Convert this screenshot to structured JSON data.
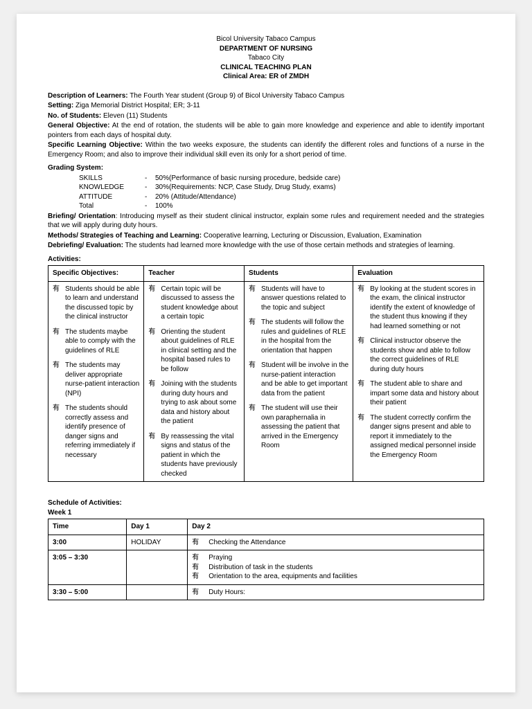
{
  "header": {
    "university": "Bicol University Tabaco Campus",
    "department": "DEPARTMENT OF NURSING",
    "city": "Tabaco City",
    "plan_title": "CLINICAL TEACHING PLAN",
    "area_label": "Clinical Area:",
    "area_value": "ER of ZMDH"
  },
  "fields": {
    "description_label": "Description of Learners:",
    "description_value": "The Fourth Year student (Group 9) of Bicol University Tabaco Campus",
    "setting_label": "Setting:",
    "setting_value": "Ziga Memorial District Hospital; ER; 3-11",
    "num_students_label": "No. of Students:",
    "num_students_value": "Eleven (11) Students",
    "general_obj_label": "General Objective:",
    "general_obj_value": "At the end of rotation, the students will be able to gain more knowledge and experience and able to identify important pointers from each days of hospital duty.",
    "specific_obj_label": "Specific Learning Objective:",
    "specific_obj_value": "Within the two weeks exposure, the students can identify the different roles and functions of a nurse in the Emergency Room; and also to improve their individual skill even its only for a short period of time.",
    "grading_label": "Grading System:",
    "briefing_label": "Briefing/ Orientation",
    "briefing_value": ": Introducing myself as their student clinical instructor, explain some rules and requirement needed and the strategies that we will apply during duty hours.",
    "methods_label": "Methods/ Strategies of Teaching and Learning:",
    "methods_value": "Cooperative learning, Lecturing or Discussion, Evaluation, Examination",
    "debrief_label": "Debriefing/ Evaluation:",
    "debrief_value": "The students had learned more knowledge with the use of those certain methods and strategies of learning.",
    "activities_label": "Activities:",
    "schedule_label": "Schedule of Activities:",
    "week_label": "Week 1"
  },
  "grading": [
    {
      "name": "SKILLS",
      "pct": "50%",
      "desc": "(Performance of basic nursing procedure, bedside care)"
    },
    {
      "name": "KNOWLEDGE",
      "pct": "30%",
      "desc": "(Requirements: NCP, Case Study, Drug Study, exams)"
    },
    {
      "name": "ATTITUDE",
      "pct": "20%",
      "desc": " (Attitude/Attendance)"
    },
    {
      "name": "Total",
      "pct": "100%",
      "desc": ""
    }
  ],
  "bullet": "有",
  "activities_table": {
    "headers": [
      "Specific Objectives:",
      "Teacher",
      "Students",
      "Evaluation"
    ],
    "rows": [
      {
        "obj": "Students should be able to learn    and understand the discussed topic by the clinical instructor",
        "teacher": "Certain topic will be discussed    to assess the student knowledge about a certain topic",
        "students": "Students will have to answer    questions related to the topic    and subject",
        "eval": "By looking at the student scores    in the exam, the clinical    instructor identify the extent of    knowledge of the student thus    knowing if they had learned    something or not"
      },
      {
        "obj": "The students maybe able to    comply with the guidelines of    RLE",
        "teacher": "Orienting the student about guidelines of RLE in clinical    setting and the hospital based rules to be follow",
        "students": "The students will follow the    rules and guidelines of RLE in    the hospital    from the orientation that happen",
        "eval": "Clinical instructor observe the    students show and able to follow the correct guidelines of RLE during duty hours"
      },
      {
        "obj": "The students may deliver    appropriate nurse-patient interaction (NPI)",
        "teacher": "Joining with the students    during duty hours and trying    to ask about some data and    history about the patient",
        "students": "Student will be involve in the    nurse-patient interaction and be    able to get important data from    the patient",
        "eval": "The student able to share and    impart some data and history    about their patient"
      },
      {
        "obj": "The students should correctly    assess and identify presence of danger signs and referring immediately if necessary",
        "teacher": "By reassessing the vital signs    and status of the patient in which the students have    previously checked",
        "students": "The student will use their own    paraphernalia in assessing the    patient that arrived in the Emergency Room",
        "eval": "The student correctly confirm    the danger signs present    and able to report it immediately to    the assigned    medical personnel inside    the Emergency Room"
      }
    ]
  },
  "schedule_table": {
    "headers": [
      "Time",
      "Day 1",
      "Day 2"
    ],
    "rows": [
      {
        "time": "3:00",
        "day1": "HOLIDAY",
        "day2_items": [
          "Checking the Attendance"
        ]
      },
      {
        "time": "3:05 – 3:30",
        "day1": "",
        "day2_items": [
          "Praying",
          "Distribution of task in the students",
          "Orientation to the area, equipments and facilities"
        ]
      },
      {
        "time": "3:30 – 5:00",
        "day1": "",
        "day2_items": [
          "Duty Hours:"
        ]
      }
    ]
  }
}
